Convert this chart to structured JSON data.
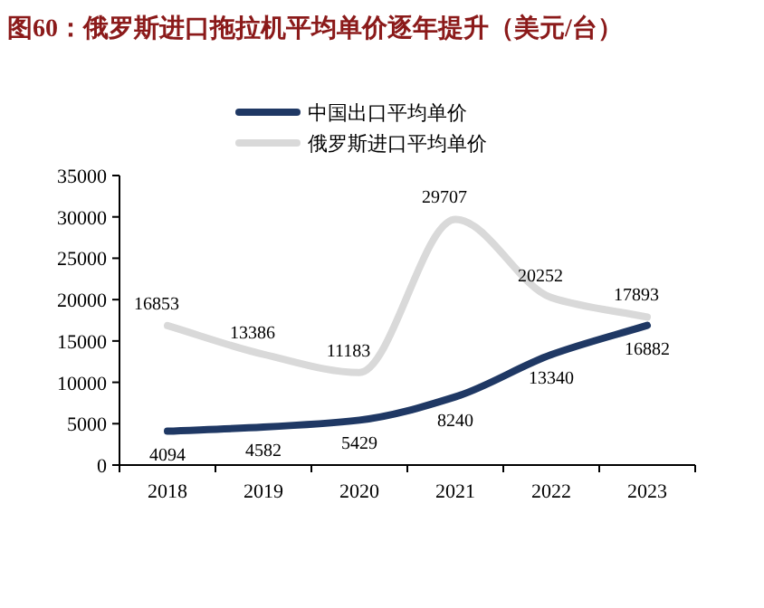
{
  "chart_data": {
    "type": "line",
    "title": "图60：俄罗斯进口拖拉机平均单价逐年提升（美元/台）",
    "categories": [
      "2018",
      "2019",
      "2020",
      "2021",
      "2022",
      "2023"
    ],
    "series": [
      {
        "name": "中国出口平均单价",
        "color": "#1f3864",
        "values": [
          4094,
          4582,
          5429,
          8240,
          13340,
          16882
        ]
      },
      {
        "name": "俄罗斯进口平均单价",
        "color": "#d9d9d9",
        "values": [
          16853,
          13386,
          11183,
          29707,
          20252,
          17893
        ]
      }
    ],
    "ylim": [
      0,
      35000
    ],
    "yticks": [
      0,
      5000,
      10000,
      15000,
      20000,
      25000,
      30000,
      35000
    ],
    "data_labels": true,
    "legend": "top left",
    "grid": false,
    "marker": "none",
    "line_style": "solid"
  }
}
